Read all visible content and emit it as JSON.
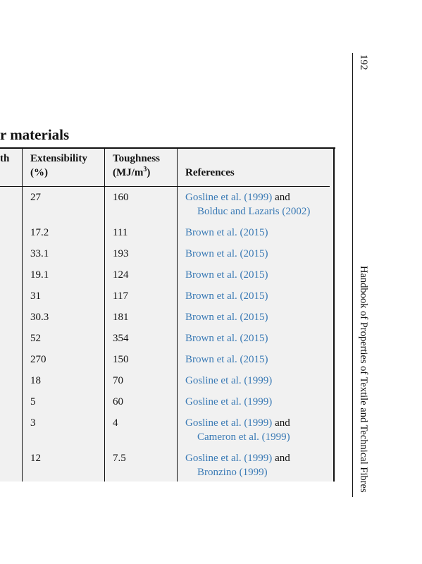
{
  "page_number": "192",
  "running_head": "Handbook of Properties of Textile and Technical Fibres",
  "table": {
    "title": "r materials",
    "header": {
      "col0": "th",
      "extensibility": [
        "Extensibility",
        "(%)"
      ],
      "toughness": {
        "line1": "Toughness",
        "unit": "(MJ/m",
        "sup": "3",
        "close": ")"
      },
      "references": "References"
    },
    "rows": [
      {
        "extensibility": "27",
        "toughness": "160",
        "refs": [
          [
            {
              "text": "Gosline et al. (1999)",
              "link": true
            },
            {
              "text": "and",
              "link": false
            }
          ],
          [
            {
              "text": "Bolduc and Lazaris (2002)",
              "link": true
            }
          ]
        ]
      },
      {
        "extensibility": "17.2",
        "toughness": "111",
        "refs": [
          [
            {
              "text": "Brown et al. (2015)",
              "link": true
            }
          ]
        ]
      },
      {
        "extensibility": "33.1",
        "toughness": "193",
        "refs": [
          [
            {
              "text": "Brown et al. (2015)",
              "link": true
            }
          ]
        ]
      },
      {
        "extensibility": "19.1",
        "toughness": "124",
        "refs": [
          [
            {
              "text": "Brown et al. (2015)",
              "link": true
            }
          ]
        ]
      },
      {
        "extensibility": "31",
        "toughness": "117",
        "refs": [
          [
            {
              "text": "Brown et al. (2015)",
              "link": true
            }
          ]
        ]
      },
      {
        "extensibility": "30.3",
        "toughness": "181",
        "refs": [
          [
            {
              "text": "Brown et al. (2015)",
              "link": true
            }
          ]
        ]
      },
      {
        "extensibility": "52",
        "toughness": "354",
        "refs": [
          [
            {
              "text": "Brown et al. (2015)",
              "link": true
            }
          ]
        ]
      },
      {
        "extensibility": "270",
        "toughness": "150",
        "refs": [
          [
            {
              "text": "Brown et al. (2015)",
              "link": true
            }
          ]
        ]
      },
      {
        "extensibility": "18",
        "toughness": "70",
        "refs": [
          [
            {
              "text": "Gosline et al. (1999)",
              "link": true
            }
          ]
        ]
      },
      {
        "extensibility": "5",
        "toughness": "60",
        "refs": [
          [
            {
              "text": "Gosline et al. (1999)",
              "link": true
            }
          ]
        ]
      },
      {
        "extensibility": "3",
        "toughness": "4",
        "refs": [
          [
            {
              "text": "Gosline et al. (1999)",
              "link": true
            },
            {
              "text": "and",
              "link": false
            }
          ],
          [
            {
              "text": "Cameron et al. (1999)",
              "link": true
            }
          ]
        ]
      },
      {
        "extensibility": "12",
        "toughness": "7.5",
        "refs": [
          [
            {
              "text": "Gosline et al. (1999)",
              "link": true
            },
            {
              "text": "and",
              "link": false
            }
          ],
          [
            {
              "text": "Bronzino (1999)",
              "link": true
            }
          ]
        ]
      }
    ]
  }
}
